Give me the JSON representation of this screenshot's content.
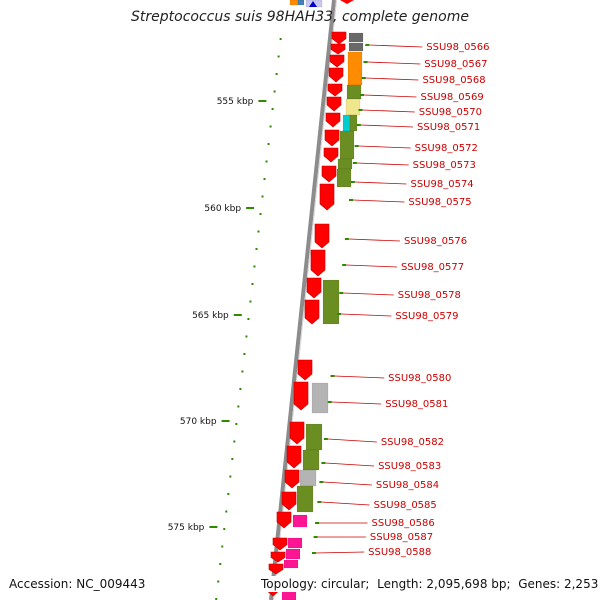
{
  "title": "Streptococcus suis 98HAH33, complete genome",
  "footer": {
    "accession_label": "Accession:",
    "accession": "NC_009443",
    "topology_label": "Topology:",
    "topology": "circular",
    "length_label": "Length:",
    "length": "2,095,698 bp",
    "genes_label": "Genes:",
    "genes": "2,253"
  },
  "scale": {
    "unit": "kbp",
    "ticks": [
      555,
      560,
      565,
      570,
      575
    ],
    "tick_labels": [
      "555 kbp",
      "560 kbp",
      "565 kbp",
      "570 kbp",
      "575 kbp"
    ]
  },
  "colors": {
    "backbone": "#8c8c8c",
    "gene": "#ff0000",
    "cog_green": "#6b8e23",
    "cog_orange": "#ff8c00",
    "cog_yellow": "#f0e68c",
    "cog_cyan": "#00ced1",
    "cog_gray": "#b4b4b4",
    "cog_dark_gray": "#696969",
    "cog_pink": "#ff1493",
    "label": "#cc0000",
    "tick": "#2e8b00"
  },
  "genes": [
    {
      "name": "SSU98_0566"
    },
    {
      "name": "SSU98_0567"
    },
    {
      "name": "SSU98_0568"
    },
    {
      "name": "SSU98_0569"
    },
    {
      "name": "SSU98_0570"
    },
    {
      "name": "SSU98_0571"
    },
    {
      "name": "SSU98_0572"
    },
    {
      "name": "SSU98_0573"
    },
    {
      "name": "SSU98_0574"
    },
    {
      "name": "SSU98_0575"
    },
    {
      "name": "SSU98_0576"
    },
    {
      "name": "SSU98_0577"
    },
    {
      "name": "SSU98_0578"
    },
    {
      "name": "SSU98_0579"
    },
    {
      "name": "SSU98_0580"
    },
    {
      "name": "SSU98_0581"
    },
    {
      "name": "SSU98_0582"
    },
    {
      "name": "SSU98_0583"
    },
    {
      "name": "SSU98_0584"
    },
    {
      "name": "SSU98_0585"
    },
    {
      "name": "SSU98_0586"
    },
    {
      "name": "SSU98_0587"
    },
    {
      "name": "SSU98_0588"
    }
  ]
}
